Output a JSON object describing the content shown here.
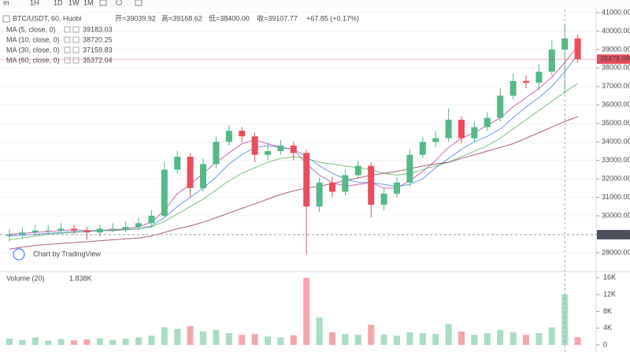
{
  "toolbar": {
    "intervals": [
      "m",
      "1H",
      "1D",
      "1W",
      "1M"
    ]
  },
  "legend": {
    "symbol": "BTC/USDT, 60, Huobi",
    "open": "开=39039.92",
    "high": "高=39168.62",
    "low": "低=38400.00",
    "close": "收=39107.77",
    "change": "+67.85 (+0.17%)"
  },
  "watermark": "Chart by TradingView",
  "chart_data": [
    {
      "type": "candlestick",
      "up_color": "#53b987",
      "down_color": "#eb4d5c",
      "open": [
        28900,
        29000,
        29100,
        29200,
        29200,
        29300,
        29200,
        29100,
        29300,
        29300,
        29400,
        29600,
        30000,
        32500,
        33200,
        31500,
        32800,
        34000,
        34600,
        34300,
        33300,
        33500,
        33800,
        33400,
        30500,
        31800,
        31300,
        32200,
        32700,
        30600,
        31200,
        31800,
        33300,
        34000,
        34200,
        35200,
        34200,
        34800,
        35300,
        36500,
        37300,
        37200,
        37800,
        39000,
        39600
      ],
      "high": [
        29300,
        29400,
        29500,
        29500,
        29600,
        29500,
        29400,
        29500,
        29600,
        29700,
        29900,
        30300,
        32900,
        33500,
        33400,
        33100,
        34300,
        34900,
        34800,
        34500,
        33900,
        34100,
        34000,
        33600,
        32100,
        32100,
        32500,
        33000,
        32900,
        31500,
        32100,
        33600,
        34300,
        34600,
        35800,
        35400,
        35100,
        35600,
        36900,
        37700,
        37600,
        38200,
        39500,
        40400,
        39800
      ],
      "low": [
        28600,
        28800,
        28900,
        29000,
        29000,
        29000,
        28700,
        28900,
        29100,
        29100,
        29200,
        29400,
        29900,
        32300,
        31000,
        31300,
        32600,
        33800,
        34000,
        32900,
        33000,
        33300,
        33000,
        27900,
        30200,
        31000,
        31100,
        32000,
        29900,
        30300,
        31000,
        31600,
        33100,
        33700,
        34000,
        33900,
        34000,
        34600,
        35100,
        36300,
        36900,
        36800,
        37600,
        36600,
        38300
      ],
      "close": [
        29000,
        29100,
        29200,
        29200,
        29300,
        29200,
        29100,
        29300,
        29300,
        29400,
        29600,
        30000,
        32500,
        33200,
        31500,
        32800,
        34000,
        34600,
        34300,
        33300,
        33500,
        33800,
        33400,
        30500,
        31800,
        31300,
        32200,
        32700,
        30600,
        31200,
        31800,
        33300,
        34000,
        34200,
        35200,
        34200,
        34800,
        35300,
        36500,
        37300,
        37200,
        37800,
        39000,
        39600,
        38478.08
      ],
      "series": [
        {
          "name": "MA (5, close, 0)",
          "color": "#c0329b",
          "values": [
            29000,
            29050,
            29100,
            29150,
            29200,
            29250,
            29200,
            29200,
            29250,
            29300,
            29400,
            29650,
            30300,
            31200,
            31700,
            32300,
            32900,
            33400,
            33900,
            34100,
            33900,
            33700,
            33600,
            32800,
            32200,
            31800,
            31600,
            31700,
            31800,
            31500,
            31500,
            31900,
            32400,
            33000,
            33700,
            34200,
            34500,
            34900,
            35300,
            35900,
            36400,
            36900,
            37500,
            38300,
            39183.03
          ]
        },
        {
          "name": "MA (10, close, 0)",
          "color": "#3a7bd5",
          "values": [
            28900,
            28950,
            29000,
            29050,
            29100,
            29150,
            29150,
            29200,
            29200,
            29250,
            29300,
            29450,
            29900,
            30500,
            31000,
            31500,
            32100,
            32800,
            33300,
            33700,
            33800,
            33700,
            33600,
            33200,
            32700,
            32300,
            32000,
            31800,
            31800,
            31700,
            31600,
            31700,
            32000,
            32600,
            33100,
            33600,
            34000,
            34300,
            34700,
            35300,
            35900,
            36400,
            37000,
            37800,
            38720.25
          ]
        },
        {
          "name": "MA (30, close, 0)",
          "color": "#4caf50",
          "values": [
            28700,
            28800,
            28900,
            29000,
            29050,
            29100,
            29150,
            29200,
            29200,
            29250,
            29300,
            29400,
            29700,
            30100,
            30500,
            30900,
            31400,
            31900,
            32300,
            32600,
            32900,
            33100,
            33200,
            33100,
            32900,
            32800,
            32700,
            32600,
            32500,
            32300,
            32200,
            32300,
            32500,
            32700,
            32900,
            33200,
            33500,
            33800,
            34200,
            34700,
            35200,
            35700,
            36200,
            36700,
            37159.83
          ]
        },
        {
          "name": "MA (60, close, 0)",
          "color": "#8e2c5a",
          "values": [
            28200,
            28300,
            28400,
            28450,
            28500,
            28550,
            28600,
            28650,
            28700,
            28750,
            28800,
            28900,
            29100,
            29300,
            29450,
            29650,
            29900,
            30150,
            30400,
            30650,
            30900,
            31150,
            31350,
            31500,
            31600,
            31750,
            31900,
            32050,
            32200,
            32300,
            32400,
            32550,
            32700,
            32800,
            32900,
            33100,
            33300,
            33500,
            33700,
            33900,
            34200,
            34500,
            34800,
            35100,
            35372.04
          ]
        }
      ],
      "ylim": [
        27060,
        41170
      ],
      "yticks": [
        {
          "value": 41000,
          "label": "41000.00"
        },
        {
          "value": 40000,
          "label": "40000.00"
        },
        {
          "value": 39000,
          "label": "39000.00"
        },
        {
          "value": 38000,
          "label": "38000.00"
        },
        {
          "value": 37000,
          "label": "37000.00"
        },
        {
          "value": 36000,
          "label": "36000.00"
        },
        {
          "value": 35000,
          "label": "35000.00"
        },
        {
          "value": 34000,
          "label": "34000.00"
        },
        {
          "value": 33000,
          "label": "33000.00"
        },
        {
          "value": 32000,
          "label": "32000.00"
        },
        {
          "value": 31000,
          "label": "31000.00"
        },
        {
          "value": 30000,
          "label": "30000.00"
        },
        {
          "value": 29000,
          "label": "29000.00"
        },
        {
          "value": 28000,
          "label": "28000.00"
        }
      ],
      "last_price": 38478.08,
      "crosshair_price": 28977.89,
      "grid": true
    },
    {
      "type": "bar",
      "title": "Volume (20)",
      "last_label": "1.838K",
      "values": [
        1500,
        1200,
        1800,
        1000,
        1400,
        1100,
        1300,
        1600,
        1200,
        1500,
        1800,
        2200,
        4200,
        3800,
        4500,
        3200,
        3600,
        2800,
        2400,
        2600,
        2000,
        1800,
        2300,
        16000,
        6500,
        3000,
        2600,
        2400,
        4800,
        2500,
        2200,
        3000,
        2800,
        2600,
        5000,
        3200,
        2400,
        2800,
        3600,
        3000,
        2400,
        2800,
        4200,
        12000,
        1838
      ],
      "ylim": [
        0,
        16900
      ],
      "yticks": [
        {
          "value": 16000,
          "label": "16K"
        },
        {
          "value": 12000,
          "label": "12K"
        },
        {
          "value": 8000,
          "label": "8K"
        },
        {
          "value": 4000,
          "label": "4K"
        },
        0
      ]
    }
  ]
}
